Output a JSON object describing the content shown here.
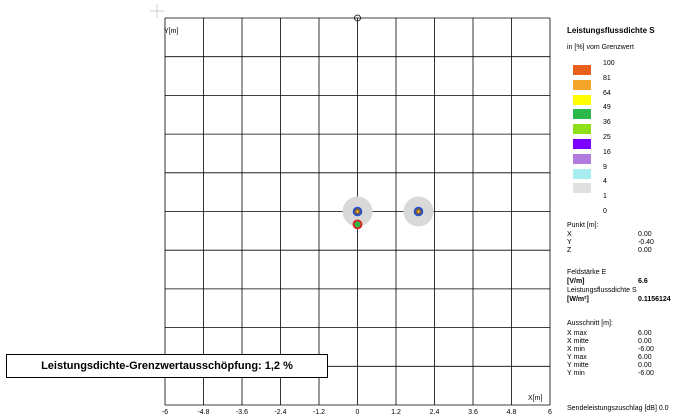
{
  "plot": {
    "y_axis_label": "Y[m]",
    "x_axis_label": "X[m]",
    "x_ticks": [
      "-6",
      "-4.8",
      "-3.6",
      "-2.4",
      "-1.2",
      "0",
      "1.2",
      "2.4",
      "3.6",
      "4.8",
      "6"
    ],
    "x_range": [
      -6,
      6
    ],
    "y_range": [
      -6,
      6
    ],
    "sources": [
      {
        "x": 0.0,
        "y": 0.0,
        "kind": "antenna"
      },
      {
        "x": 0.0,
        "y": -0.4,
        "kind": "selected-point"
      },
      {
        "x": 1.9,
        "y": 0.0,
        "kind": "antenna"
      }
    ],
    "colors": {
      "grid": "#000000",
      "halo": "#d9d9d9",
      "antenna_ring": "#1e4fd8",
      "point_ring": "#e02020"
    }
  },
  "legend": {
    "title": "Leistungsflussdichte S",
    "subtitle": "in [%] vom Grenzwert",
    "levels": [
      "100",
      "81",
      "64",
      "49",
      "36",
      "25",
      "16",
      "9",
      "4",
      "1",
      "0"
    ],
    "swatch_colors": [
      "#e8601c",
      "#f4a52a",
      "#ffff00",
      "#2db84b",
      "#8ee01a",
      "#7b00ff",
      "#b07adf",
      "#a8eef0",
      "#e0e0e0"
    ]
  },
  "point": {
    "heading": "Punkt [m]:",
    "rows": [
      {
        "label": "X",
        "value": "0.00"
      },
      {
        "label": "Y",
        "value": "-0.40"
      },
      {
        "label": "Z",
        "value": "0.00"
      }
    ]
  },
  "field": {
    "e_label": "Feldstärke E",
    "e_unit": "[V/m]",
    "e_value": "6.6",
    "s_label": "Leistungsflussdichte S",
    "s_unit": "[W/m²]",
    "s_value": "0.1156124"
  },
  "cutout": {
    "heading": "Ausschnitt [m]:",
    "rows": [
      {
        "label": "X max",
        "value": "6.00"
      },
      {
        "label": "X mitte",
        "value": "0.00"
      },
      {
        "label": "X min",
        "value": "-6.00"
      },
      {
        "label": "Y max",
        "value": "6.00"
      },
      {
        "label": "Y mitte",
        "value": "0.00"
      },
      {
        "label": "Y min",
        "value": "-6.00"
      }
    ]
  },
  "footer": "Sendeleistungszuschlag [dB] 0.0",
  "result_banner": "Leistungsdichte-Grenzwertausschöpfung: 1,2 %"
}
